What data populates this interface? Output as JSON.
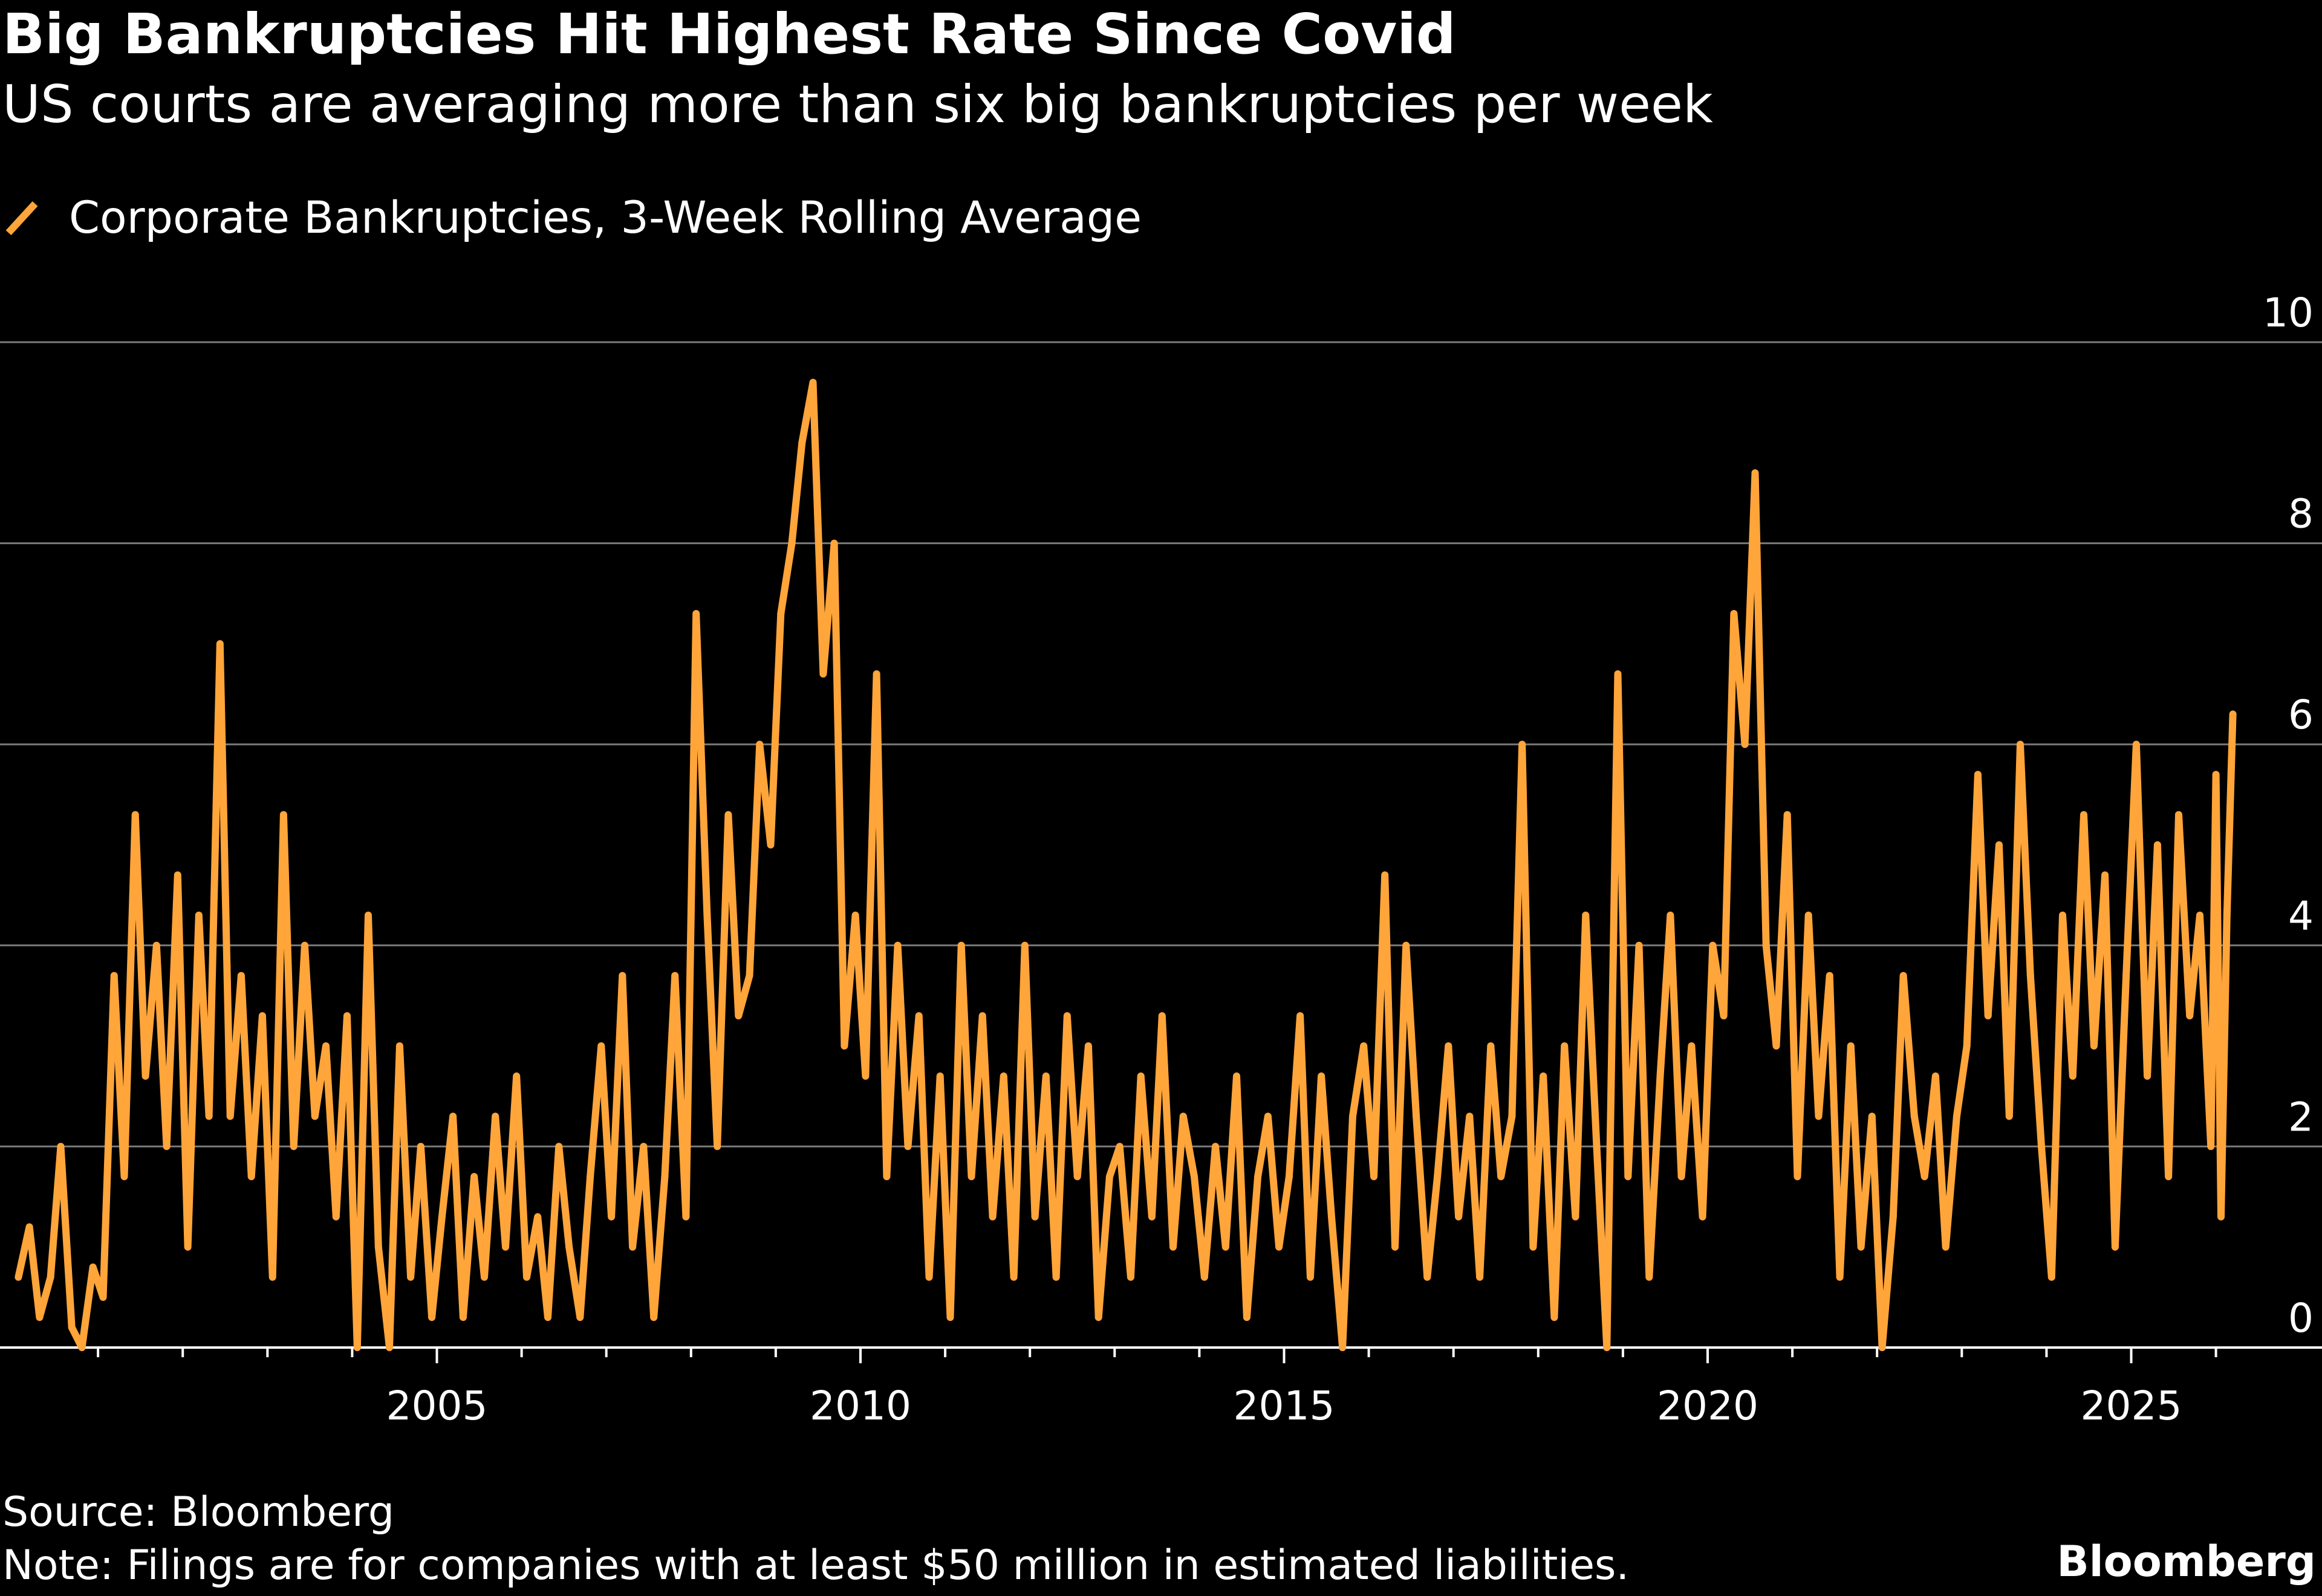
{
  "chart_data": {
    "type": "line",
    "title": "Big Bankruptcies Hit Highest Rate Since Covid",
    "subtitle": "US courts are averaging more than six big bankruptcies per week",
    "xlabel": "",
    "ylabel": "",
    "ylim": [
      0,
      10
    ],
    "xlim": [
      1999.84,
      2026.5
    ],
    "yticks": [
      "0",
      "2",
      "4",
      "6",
      "8",
      "10"
    ],
    "xticks": [
      "2005",
      "2010",
      "2015",
      "2020",
      "2025"
    ],
    "grid": true,
    "y_axis_side": "right",
    "legend_placement": "top-left",
    "series": [
      {
        "name": "Corporate Bankruptcies, 3-Week Rolling Average",
        "color": "#FFA53A",
        "points": [
          [
            2000.06,
            0.7
          ],
          [
            2000.19,
            1.2
          ],
          [
            2000.31,
            0.3
          ],
          [
            2000.44,
            0.7
          ],
          [
            2000.56,
            2.0
          ],
          [
            2000.69,
            0.2
          ],
          [
            2000.81,
            0.0
          ],
          [
            2000.94,
            0.8
          ],
          [
            2001.06,
            0.5
          ],
          [
            2001.19,
            3.7
          ],
          [
            2001.31,
            1.7
          ],
          [
            2001.44,
            5.3
          ],
          [
            2001.56,
            2.7
          ],
          [
            2001.69,
            4.0
          ],
          [
            2001.81,
            2.0
          ],
          [
            2001.94,
            4.7
          ],
          [
            2002.06,
            1.0
          ],
          [
            2002.19,
            4.3
          ],
          [
            2002.31,
            2.3
          ],
          [
            2002.44,
            7.0
          ],
          [
            2002.56,
            2.3
          ],
          [
            2002.69,
            3.7
          ],
          [
            2002.81,
            1.7
          ],
          [
            2002.94,
            3.3
          ],
          [
            2003.06,
            0.7
          ],
          [
            2003.19,
            5.3
          ],
          [
            2003.31,
            2.0
          ],
          [
            2003.44,
            4.0
          ],
          [
            2003.56,
            2.3
          ],
          [
            2003.69,
            3.0
          ],
          [
            2003.81,
            1.3
          ],
          [
            2003.94,
            3.3
          ],
          [
            2004.06,
            0.0
          ],
          [
            2004.19,
            4.3
          ],
          [
            2004.31,
            1.0
          ],
          [
            2004.44,
            0.0
          ],
          [
            2004.56,
            3.0
          ],
          [
            2004.69,
            0.7
          ],
          [
            2004.81,
            2.0
          ],
          [
            2004.94,
            0.3
          ],
          [
            2005.06,
            1.3
          ],
          [
            2005.19,
            2.3
          ],
          [
            2005.31,
            0.3
          ],
          [
            2005.44,
            1.7
          ],
          [
            2005.56,
            0.7
          ],
          [
            2005.69,
            2.3
          ],
          [
            2005.81,
            1.0
          ],
          [
            2005.94,
            2.7
          ],
          [
            2006.06,
            0.7
          ],
          [
            2006.19,
            1.3
          ],
          [
            2006.31,
            0.3
          ],
          [
            2006.44,
            2.0
          ],
          [
            2006.56,
            1.0
          ],
          [
            2006.69,
            0.3
          ],
          [
            2006.81,
            1.7
          ],
          [
            2006.94,
            3.0
          ],
          [
            2007.06,
            1.3
          ],
          [
            2007.19,
            3.7
          ],
          [
            2007.31,
            1.0
          ],
          [
            2007.44,
            2.0
          ],
          [
            2007.56,
            0.3
          ],
          [
            2007.69,
            1.7
          ],
          [
            2007.81,
            3.7
          ],
          [
            2007.94,
            1.3
          ],
          [
            2008.06,
            7.3
          ],
          [
            2008.19,
            4.3
          ],
          [
            2008.31,
            2.0
          ],
          [
            2008.44,
            5.3
          ],
          [
            2008.56,
            3.3
          ],
          [
            2008.69,
            3.7
          ],
          [
            2008.81,
            6.0
          ],
          [
            2008.94,
            5.0
          ],
          [
            2009.06,
            7.3
          ],
          [
            2009.19,
            8.0
          ],
          [
            2009.31,
            9.0
          ],
          [
            2009.44,
            9.6
          ],
          [
            2009.56,
            6.7
          ],
          [
            2009.69,
            8.0
          ],
          [
            2009.81,
            3.0
          ],
          [
            2009.94,
            4.3
          ],
          [
            2010.06,
            2.7
          ],
          [
            2010.19,
            6.7
          ],
          [
            2010.31,
            1.7
          ],
          [
            2010.44,
            4.0
          ],
          [
            2010.56,
            2.0
          ],
          [
            2010.69,
            3.3
          ],
          [
            2010.81,
            0.7
          ],
          [
            2010.94,
            2.7
          ],
          [
            2011.06,
            0.3
          ],
          [
            2011.19,
            4.0
          ],
          [
            2011.31,
            1.7
          ],
          [
            2011.44,
            3.3
          ],
          [
            2011.56,
            1.3
          ],
          [
            2011.69,
            2.7
          ],
          [
            2011.81,
            0.7
          ],
          [
            2011.94,
            4.0
          ],
          [
            2012.06,
            1.3
          ],
          [
            2012.19,
            2.7
          ],
          [
            2012.31,
            0.7
          ],
          [
            2012.44,
            3.3
          ],
          [
            2012.56,
            1.7
          ],
          [
            2012.69,
            3.0
          ],
          [
            2012.81,
            0.3
          ],
          [
            2012.94,
            1.7
          ],
          [
            2013.06,
            2.0
          ],
          [
            2013.19,
            0.7
          ],
          [
            2013.31,
            2.7
          ],
          [
            2013.44,
            1.3
          ],
          [
            2013.56,
            3.3
          ],
          [
            2013.69,
            1.0
          ],
          [
            2013.81,
            2.3
          ],
          [
            2013.94,
            1.7
          ],
          [
            2014.06,
            0.7
          ],
          [
            2014.19,
            2.0
          ],
          [
            2014.31,
            1.0
          ],
          [
            2014.44,
            2.7
          ],
          [
            2014.56,
            0.3
          ],
          [
            2014.69,
            1.7
          ],
          [
            2014.81,
            2.3
          ],
          [
            2014.94,
            1.0
          ],
          [
            2015.06,
            1.7
          ],
          [
            2015.19,
            3.3
          ],
          [
            2015.31,
            0.7
          ],
          [
            2015.44,
            2.7
          ],
          [
            2015.56,
            1.3
          ],
          [
            2015.69,
            0.0
          ],
          [
            2015.81,
            2.3
          ],
          [
            2015.94,
            3.0
          ],
          [
            2016.06,
            1.7
          ],
          [
            2016.19,
            4.7
          ],
          [
            2016.31,
            1.0
          ],
          [
            2016.44,
            4.0
          ],
          [
            2016.56,
            2.3
          ],
          [
            2016.69,
            0.7
          ],
          [
            2016.81,
            1.7
          ],
          [
            2016.94,
            3.0
          ],
          [
            2017.06,
            1.3
          ],
          [
            2017.19,
            2.3
          ],
          [
            2017.31,
            0.7
          ],
          [
            2017.44,
            3.0
          ],
          [
            2017.56,
            1.7
          ],
          [
            2017.69,
            2.3
          ],
          [
            2017.81,
            6.0
          ],
          [
            2017.94,
            1.0
          ],
          [
            2018.06,
            2.7
          ],
          [
            2018.19,
            0.3
          ],
          [
            2018.31,
            3.0
          ],
          [
            2018.44,
            1.3
          ],
          [
            2018.56,
            4.3
          ],
          [
            2018.69,
            2.0
          ],
          [
            2018.81,
            0.0
          ],
          [
            2018.94,
            6.7
          ],
          [
            2019.06,
            1.7
          ],
          [
            2019.19,
            4.0
          ],
          [
            2019.31,
            0.7
          ],
          [
            2019.44,
            2.7
          ],
          [
            2019.56,
            4.3
          ],
          [
            2019.69,
            1.7
          ],
          [
            2019.81,
            3.0
          ],
          [
            2019.94,
            1.3
          ],
          [
            2020.06,
            4.0
          ],
          [
            2020.19,
            3.3
          ],
          [
            2020.31,
            7.3
          ],
          [
            2020.44,
            6.0
          ],
          [
            2020.56,
            8.7
          ],
          [
            2020.69,
            4.0
          ],
          [
            2020.81,
            3.0
          ],
          [
            2020.94,
            5.3
          ],
          [
            2021.06,
            1.7
          ],
          [
            2021.19,
            4.3
          ],
          [
            2021.31,
            2.3
          ],
          [
            2021.44,
            3.7
          ],
          [
            2021.56,
            0.7
          ],
          [
            2021.69,
            3.0
          ],
          [
            2021.81,
            1.0
          ],
          [
            2021.94,
            2.3
          ],
          [
            2022.06,
            0.0
          ],
          [
            2022.19,
            1.3
          ],
          [
            2022.31,
            3.7
          ],
          [
            2022.44,
            2.3
          ],
          [
            2022.56,
            1.7
          ],
          [
            2022.69,
            2.7
          ],
          [
            2022.81,
            1.0
          ],
          [
            2022.94,
            2.3
          ],
          [
            2023.06,
            3.0
          ],
          [
            2023.19,
            5.7
          ],
          [
            2023.31,
            3.3
          ],
          [
            2023.44,
            5.0
          ],
          [
            2023.56,
            2.3
          ],
          [
            2023.69,
            6.0
          ],
          [
            2023.81,
            3.7
          ],
          [
            2023.94,
            2.0
          ],
          [
            2024.06,
            0.7
          ],
          [
            2024.19,
            4.3
          ],
          [
            2024.31,
            2.7
          ],
          [
            2024.44,
            5.3
          ],
          [
            2024.56,
            3.0
          ],
          [
            2024.69,
            4.7
          ],
          [
            2024.81,
            1.0
          ],
          [
            2024.94,
            3.7
          ],
          [
            2025.06,
            6.0
          ],
          [
            2025.19,
            2.7
          ],
          [
            2025.31,
            5.0
          ],
          [
            2025.44,
            1.7
          ],
          [
            2025.56,
            5.3
          ],
          [
            2025.69,
            3.3
          ],
          [
            2025.81,
            4.3
          ],
          [
            2025.94,
            2.0
          ],
          [
            2026.0,
            5.7
          ],
          [
            2026.06,
            1.3
          ],
          [
            2026.13,
            4.3
          ],
          [
            2026.2,
            6.3
          ]
        ]
      }
    ]
  },
  "footer": {
    "source": "Source: Bloomberg",
    "note": "Note: Filings are for companies with at least $50 million in estimated liabilities.",
    "brand": "Bloomberg"
  }
}
